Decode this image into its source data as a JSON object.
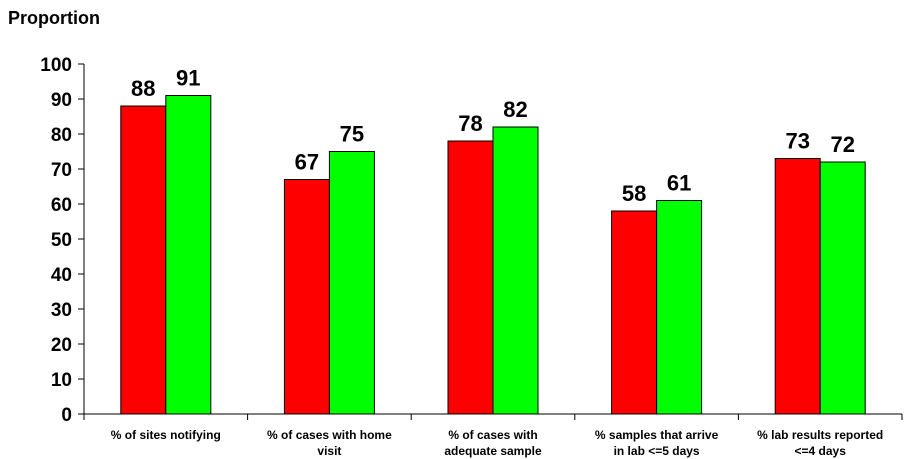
{
  "chart_data": {
    "type": "bar",
    "title": "",
    "ylabel": "Proportion",
    "xlabel": "",
    "ylim": [
      0,
      100
    ],
    "yticks": [
      0,
      10,
      20,
      30,
      40,
      50,
      60,
      70,
      80,
      90,
      100
    ],
    "grid": false,
    "legend": "none",
    "categories": [
      [
        "% of sites notifying"
      ],
      [
        "% of cases with home",
        "visit"
      ],
      [
        "% of cases with",
        "adequate sample"
      ],
      [
        "% samples that arrive",
        "in lab <=5 days"
      ],
      [
        "% lab results reported",
        "<=4 days"
      ]
    ],
    "series": [
      {
        "color": "#ff0000",
        "values": [
          88,
          67,
          78,
          58,
          73
        ]
      },
      {
        "color": "#00ff00",
        "values": [
          91,
          75,
          82,
          61,
          72
        ]
      }
    ]
  }
}
